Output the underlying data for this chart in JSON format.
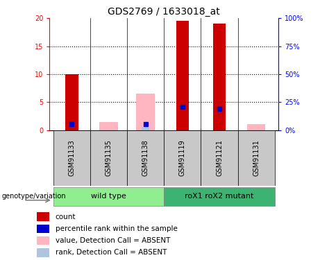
{
  "title": "GDS2769 / 1633018_at",
  "samples": [
    "GSM91133",
    "GSM91135",
    "GSM91138",
    "GSM91119",
    "GSM91121",
    "GSM91131"
  ],
  "red_bars": [
    10,
    0,
    0,
    19.5,
    19.0,
    0
  ],
  "blue_dots": [
    1.1,
    0,
    1.0,
    4.2,
    3.8,
    0
  ],
  "pink_bars": [
    0,
    1.4,
    6.5,
    0,
    0,
    1.0
  ],
  "lightblue_bars": [
    0,
    0,
    0.55,
    0,
    0,
    0
  ],
  "ylim_left": [
    0,
    20
  ],
  "ylim_right": [
    0,
    100
  ],
  "yticks_left": [
    0,
    5,
    10,
    15,
    20
  ],
  "yticks_right": [
    0,
    25,
    50,
    75,
    100
  ],
  "group1_label": "wild type",
  "group2_label": "roX1 roX2 mutant",
  "group1_color": "#90EE90",
  "group2_color": "#3CB371",
  "sample_bg_color": "#C8C8C8",
  "red_color": "#CC0000",
  "blue_color": "#0000CC",
  "pink_color": "#FFB6C1",
  "lightblue_color": "#B0C4DE",
  "bar_width": 0.35,
  "pink_bar_width": 0.5,
  "title_fontsize": 10,
  "axis_fontsize": 7,
  "tick_fontsize": 7,
  "legend_fontsize": 7.5
}
